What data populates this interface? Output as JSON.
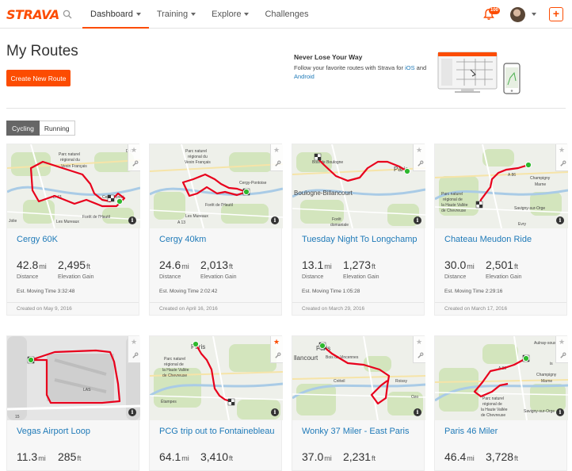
{
  "app": {
    "logo": "STRAVA",
    "nav": [
      {
        "label": "Dashboard",
        "has_menu": true,
        "active": true
      },
      {
        "label": "Training",
        "has_menu": true,
        "active": false
      },
      {
        "label": "Explore",
        "has_menu": true,
        "active": false
      },
      {
        "label": "Challenges",
        "has_menu": false,
        "active": false
      }
    ],
    "notification_count": "100",
    "plus_label": "+",
    "accent_color": "#fc4c02",
    "link_color": "#1f7ab8"
  },
  "page": {
    "title": "My Routes",
    "create_button": "Create New Route"
  },
  "promo": {
    "title": "Never Lose Your Way",
    "text_before": "Follow your favorite routes with Strava for ",
    "ios_link": "iOS",
    "text_middle": " and ",
    "android_link": "Android"
  },
  "tabs": [
    {
      "label": "Cycling",
      "active": true
    },
    {
      "label": "Running",
      "active": false
    }
  ],
  "labels": {
    "distance": "Distance",
    "elevation": "Elevation Gain",
    "moving_prefix": "Est. Moving Time"
  },
  "routes": [
    {
      "name": "Cergy 60K",
      "distance": "42.8",
      "distance_unit": "mi",
      "elevation": "2,495",
      "elevation_unit": "ft",
      "moving_time": "3:32:48",
      "created": "Created on May 9, 2016",
      "starred": false,
      "map_labels": [
        "Parc naturel",
        "régional du",
        "Vexin Français",
        "CergyPontoi",
        "D 43",
        "Forêt de l'Hautil",
        "Les Mureaux",
        "Jolie",
        "D 64"
      ]
    },
    {
      "name": "Cergy 40km",
      "distance": "24.6",
      "distance_unit": "mi",
      "elevation": "2,013",
      "elevation_unit": "ft",
      "moving_time": "2:02:42",
      "created": "Created on April 16, 2016",
      "starred": false,
      "map_labels": [
        "Parc naturel",
        "régional du",
        "Vexin Français",
        "Cergy-Pontoise",
        "Forêt de l'Hautil",
        "Les Mureaux",
        "A 13"
      ]
    },
    {
      "name": "Tuesday Night To Longchamp",
      "distance": "13.1",
      "distance_unit": "mi",
      "elevation": "1,273",
      "elevation_unit": "ft",
      "moving_time": "1:05:28",
      "created": "Created on March 29, 2016",
      "starred": false,
      "map_labels": [
        "Bois de Boulogne",
        "Paris",
        "Boulogne-Billancourt",
        "Forêt",
        "domaniale",
        "de Meudon"
      ]
    },
    {
      "name": "Chateau Meudon Ride",
      "distance": "30.0",
      "distance_unit": "mi",
      "elevation": "2,501",
      "elevation_unit": "ft",
      "moving_time": "2:29:16",
      "created": "Created on March 17, 2016",
      "starred": false,
      "map_labels": [
        "Champigny",
        "Marne",
        "A 86",
        "Parc naturel",
        "régional de",
        "la Haute Vallée",
        "de Chevreuse",
        "Savigny-sur-Orge",
        "Evry"
      ]
    },
    {
      "name": "Vegas Airport Loop",
      "distance": "11.3",
      "distance_unit": "mi",
      "elevation": "285",
      "elevation_unit": "ft",
      "moving_time": "",
      "created": "",
      "starred": false,
      "map_labels": [
        "LAS",
        "15"
      ]
    },
    {
      "name": "PCG trip out to Fontainebleau",
      "distance": "64.1",
      "distance_unit": "mi",
      "elevation": "3,410",
      "elevation_unit": "ft",
      "moving_time": "",
      "created": "",
      "starred": true,
      "map_labels": [
        "Paris",
        "Parc naturel",
        "régional de",
        "la Haute Vallée",
        "de Chevreuse",
        "Étampes"
      ]
    },
    {
      "name": "Wonky 37 Miler - East Paris",
      "distance": "37.0",
      "distance_unit": "mi",
      "elevation": "2,231",
      "elevation_unit": "ft",
      "moving_time": "",
      "created": "",
      "starred": false,
      "map_labels": [
        "Paris",
        "llancourt",
        "Bois de Vincennes",
        "Roissy",
        "Créteil",
        "Ozo"
      ]
    },
    {
      "name": "Paris 46 Miler",
      "distance": "46.4",
      "distance_unit": "mi",
      "elevation": "3,728",
      "elevation_unit": "ft",
      "moving_time": "",
      "created": "",
      "starred": false,
      "map_labels": [
        "Aulnay-sous",
        "is",
        "Champigny",
        "Marne",
        "A 86",
        "Parc naturel",
        "régional de",
        "la Haute Vallée",
        "de Chevreuse",
        "Savigny-sur-Orge"
      ]
    }
  ]
}
